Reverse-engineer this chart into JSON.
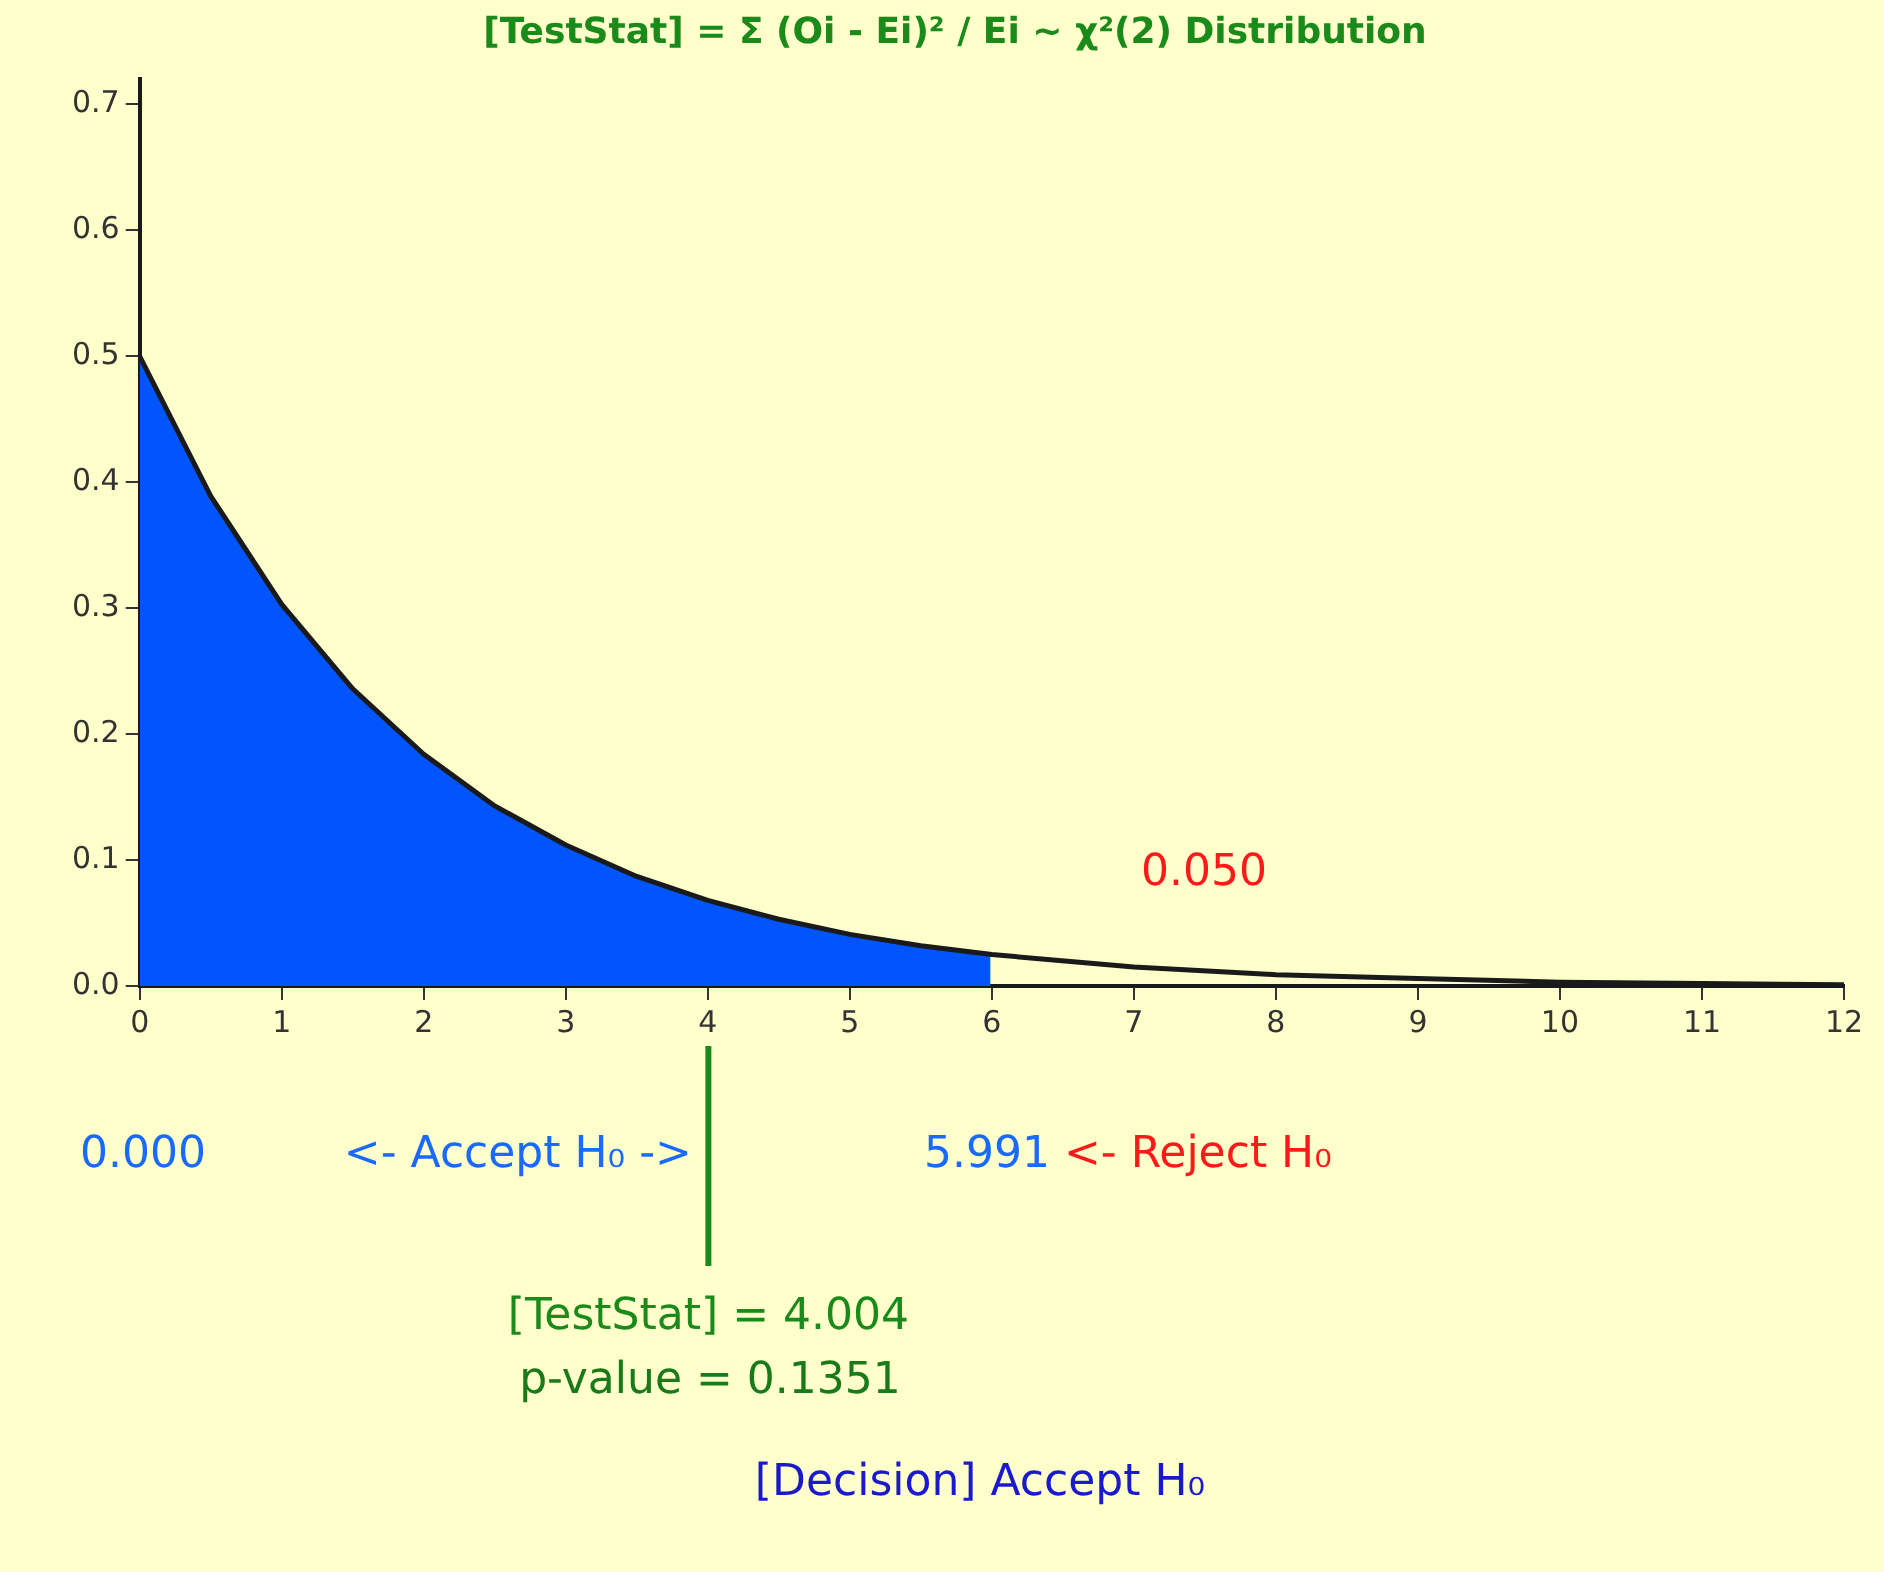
{
  "chart_data": {
    "type": "area",
    "title": "[TestStat] = Σ (Oi - Ei)² / Ei ~ χ²(2) Distribution",
    "series": [
      {
        "color": "#0055ff",
        "x": [
          0,
          0.5,
          1,
          1.5,
          2,
          2.5,
          3,
          3.5,
          4,
          4.5,
          5,
          5.5,
          5.991
        ],
        "values": [
          0.5,
          0.389,
          0.303,
          0.236,
          0.184,
          0.143,
          0.112,
          0.087,
          0.068,
          0.053,
          0.041,
          0.032,
          0.025
        ]
      },
      {
        "type": "line",
        "color": "#1a1a1a",
        "x": [
          0,
          0.5,
          1,
          1.5,
          2,
          2.5,
          3,
          3.5,
          4,
          4.5,
          5,
          5.5,
          6,
          7,
          8,
          9,
          10,
          11,
          12
        ],
        "values": [
          0.5,
          0.389,
          0.303,
          0.236,
          0.184,
          0.143,
          0.112,
          0.087,
          0.068,
          0.053,
          0.041,
          0.032,
          0.025,
          0.015,
          0.009,
          0.006,
          0.003,
          0.002,
          0.001
        ]
      }
    ],
    "xlim": [
      0,
      12
    ],
    "xticks": [
      0,
      1,
      2,
      3,
      4,
      5,
      6,
      7,
      8,
      9,
      10,
      11,
      12
    ],
    "ylim": [
      0,
      0.72
    ],
    "yticks": [
      {
        "value": 0,
        "label": "0.0"
      },
      0.1,
      0.2,
      0.3,
      0.4,
      0.5,
      0.6,
      0.7
    ],
    "grid": false,
    "legend": false,
    "marker": "none",
    "line_style": "solid",
    "ref_lines": [
      {
        "axis": "x",
        "value": 4.004,
        "label": "[TestStat] = 4.004",
        "color": "#1a8a1a"
      }
    ],
    "annotations": [
      "0.050",
      "0.000",
      "<- Accept H₀ ->",
      "5.991",
      "<- Reject H₀",
      "p-value = 0.1351",
      "[Decision] Accept H₀"
    ]
  }
}
